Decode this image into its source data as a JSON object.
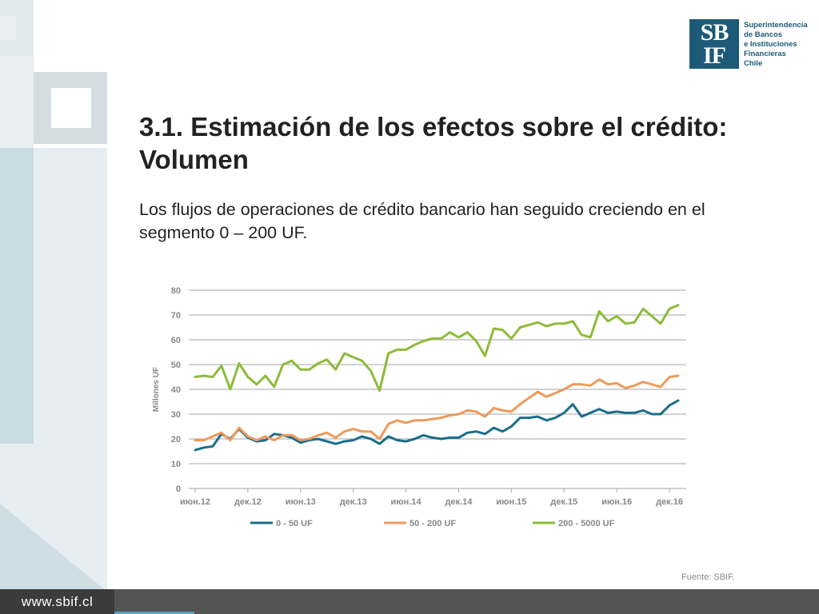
{
  "slide": {
    "title": "3.1. Estimación de los efectos sobre el crédito: Volumen",
    "body": "Los flujos de operaciones de crédito bancario han seguido creciendo en el segmento 0 – 200 UF.",
    "source": "Fuente: SBIF.",
    "footer_url": "www.sbif.cl"
  },
  "logo": {
    "mark_top": "SB",
    "mark_bottom": "IF",
    "lines": [
      "Superintendencia",
      "de Bancos",
      "e Instituciones",
      "Financieras",
      "Chile"
    ]
  },
  "colors": {
    "series_0_50": "#1a6e8a",
    "series_50_200": "#ee9a5c",
    "series_200_5000": "#8dbb3a",
    "grid": "#a6a6a6",
    "brand": "#1d5a78"
  },
  "chart_data": {
    "type": "line",
    "ylabel": "Millones UF",
    "ylim": [
      0,
      80
    ],
    "yticks": [
      0,
      10,
      20,
      30,
      40,
      50,
      60,
      70,
      80
    ],
    "xlim": [
      "2012-06",
      "2016-12"
    ],
    "xticks": [
      "июн.12",
      "дек.12",
      "июн.13",
      "дек.13",
      "июн.14",
      "дек.14",
      "июн.15",
      "дек.15",
      "июн.16",
      "дек.16"
    ],
    "grid": true,
    "legend_position": "bottom",
    "series": [
      {
        "name": "0 - 50 UF",
        "color": "#1a6e8a",
        "values": [
          15.5,
          16.5,
          17.0,
          22.0,
          20.0,
          24.0,
          20.5,
          19.0,
          19.5,
          22.0,
          21.5,
          20.5,
          18.5,
          19.5,
          20.0,
          19.0,
          18.0,
          19.0,
          19.5,
          21.0,
          20.0,
          18.0,
          21.0,
          19.5,
          19.0,
          20.0,
          21.5,
          20.5,
          20.0,
          20.5,
          20.5,
          22.5,
          23.0,
          22.0,
          24.5,
          23.0,
          25.0,
          28.5,
          28.5,
          29.0,
          27.5,
          28.5,
          30.5,
          34.0,
          29.0,
          30.5,
          32.0,
          30.5,
          31.0,
          30.5,
          30.5,
          31.5,
          30.0,
          30.0,
          33.5,
          35.5
        ]
      },
      {
        "name": "50 - 200 UF",
        "color": "#ee9a5c",
        "values": [
          19.5,
          19.5,
          21.0,
          22.5,
          19.5,
          24.5,
          21.0,
          19.5,
          21.0,
          19.5,
          21.5,
          21.5,
          19.5,
          20.0,
          21.5,
          22.5,
          20.5,
          23.0,
          24.0,
          23.0,
          23.0,
          20.0,
          26.0,
          27.5,
          26.5,
          27.5,
          27.5,
          28.0,
          28.5,
          29.5,
          30.0,
          31.5,
          31.0,
          29.0,
          32.5,
          31.5,
          31.0,
          34.0,
          36.5,
          39.0,
          37.0,
          38.5,
          40.0,
          42.0,
          42.0,
          41.5,
          44.0,
          42.0,
          42.5,
          40.5,
          41.5,
          43.0,
          42.0,
          41.0,
          45.0,
          45.5
        ]
      },
      {
        "name": "200 - 5000 UF",
        "color": "#8dbb3a",
        "values": [
          45.0,
          45.5,
          45.0,
          49.5,
          40.0,
          50.5,
          45.0,
          42.0,
          45.5,
          41.0,
          50.0,
          51.5,
          48.0,
          48.0,
          50.5,
          52.0,
          48.0,
          54.5,
          53.0,
          51.5,
          47.5,
          39.5,
          54.5,
          56.0,
          56.0,
          58.0,
          59.5,
          60.5,
          60.5,
          63.0,
          61.0,
          63.0,
          59.5,
          53.5,
          64.5,
          64.0,
          60.5,
          65.0,
          66.0,
          67.0,
          65.5,
          66.5,
          66.5,
          67.5,
          62.0,
          61.0,
          71.5,
          67.5,
          69.5,
          66.5,
          67.0,
          72.5,
          69.5,
          66.5,
          72.5,
          74.0
        ]
      }
    ]
  }
}
